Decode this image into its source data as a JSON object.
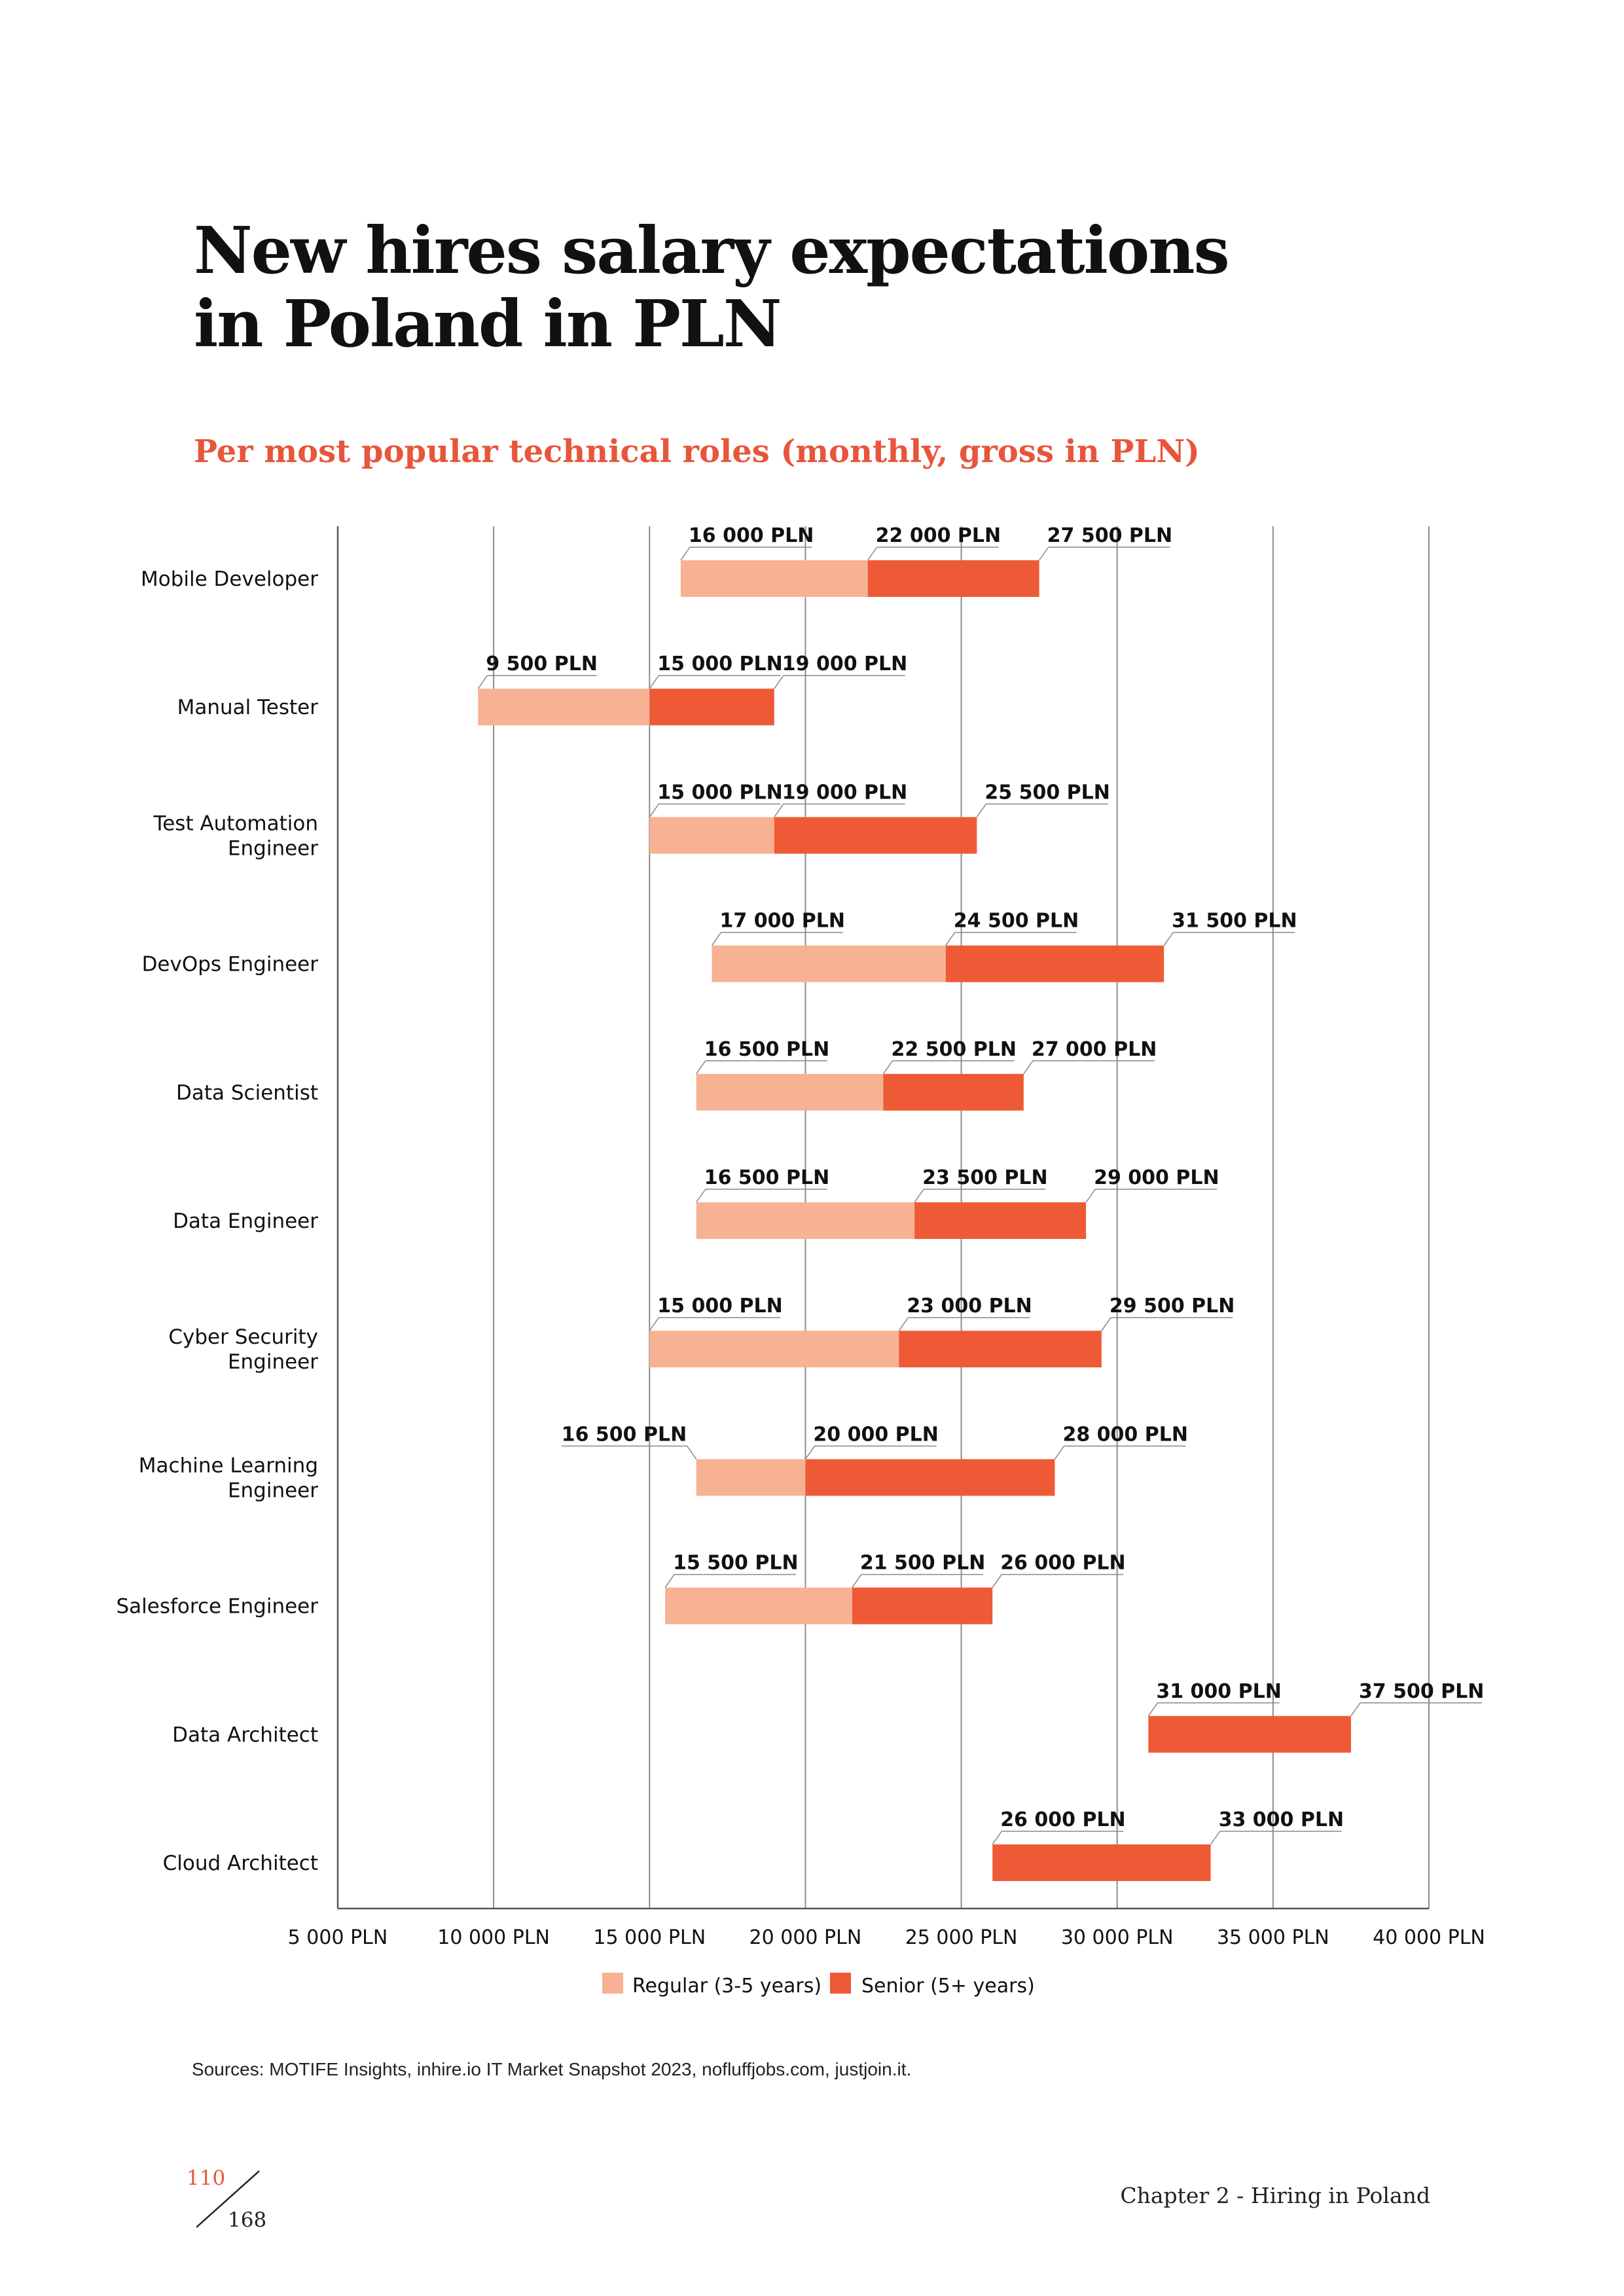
{
  "title_lines": [
    "New hires salary expectations",
    "in Poland in PLN"
  ],
  "subtitle": "Per most popular technical roles (monthly, gross in PLN)",
  "colors": {
    "regular": "#f7b294",
    "senior": "#ee5a36",
    "accent": "#e8553a"
  },
  "chart_data": {
    "type": "bar",
    "orientation": "horizontal-range",
    "xlim": [
      5000,
      40000
    ],
    "x_ticks": [
      5000,
      10000,
      15000,
      20000,
      25000,
      30000,
      35000,
      40000
    ],
    "x_tick_labels": [
      "5 000 PLN",
      "10 000 PLN",
      "15 000 PLN",
      "20 000 PLN",
      "25 000 PLN",
      "30 000 PLN",
      "35 000 PLN",
      "40 000 PLN"
    ],
    "grid": "vertical",
    "legend_position": "bottom-center",
    "legend": [
      "Regular (3-5 years)",
      "Senior (5+ years)"
    ],
    "roles": [
      {
        "name_lines": [
          "Mobile Developer"
        ],
        "regular_min": 16000,
        "senior_min": 22000,
        "senior_max": 27500,
        "labels": [
          "16 000 PLN",
          "22 000 PLN",
          "27 500 PLN"
        ]
      },
      {
        "name_lines": [
          "Manual Tester"
        ],
        "regular_min": 9500,
        "senior_min": 15000,
        "senior_max": 19000,
        "labels": [
          "9 500 PLN",
          "15 000 PLN",
          "19 000 PLN"
        ]
      },
      {
        "name_lines": [
          "Test Automation",
          "Engineer"
        ],
        "regular_min": 15000,
        "senior_min": 19000,
        "senior_max": 25500,
        "labels": [
          "15 000 PLN",
          "19 000 PLN",
          "25 500 PLN"
        ]
      },
      {
        "name_lines": [
          "DevOps Engineer"
        ],
        "regular_min": 17000,
        "senior_min": 24500,
        "senior_max": 31500,
        "labels": [
          "17 000 PLN",
          "24 500 PLN",
          "31 500 PLN"
        ]
      },
      {
        "name_lines": [
          "Data Scientist"
        ],
        "regular_min": 16500,
        "senior_min": 22500,
        "senior_max": 27000,
        "labels": [
          "16 500 PLN",
          "22 500 PLN",
          "27 000 PLN"
        ]
      },
      {
        "name_lines": [
          "Data Engineer"
        ],
        "regular_min": 16500,
        "senior_min": 23500,
        "senior_max": 29000,
        "labels": [
          "16 500 PLN",
          "23 500 PLN",
          "29 000 PLN"
        ]
      },
      {
        "name_lines": [
          "Cyber Security",
          "Engineer"
        ],
        "regular_min": 15000,
        "senior_min": 23000,
        "senior_max": 29500,
        "labels": [
          "15 000 PLN",
          "23 000 PLN",
          "29 500 PLN"
        ]
      },
      {
        "name_lines": [
          "Machine Learning",
          "Engineer"
        ],
        "regular_min": 16500,
        "senior_min": 20000,
        "senior_max": 28000,
        "labels": [
          "16 500 PLN",
          "20 000 PLN",
          "28 000 PLN"
        ]
      },
      {
        "name_lines": [
          "Salesforce Engineer"
        ],
        "regular_min": 15500,
        "senior_min": 21500,
        "senior_max": 26000,
        "labels": [
          "15 500 PLN",
          "21 500 PLN",
          "26 000 PLN"
        ]
      },
      {
        "name_lines": [
          "Data Architect"
        ],
        "regular_min": null,
        "senior_min": 31000,
        "senior_max": 37500,
        "labels": [
          "31 000 PLN",
          "37 500 PLN"
        ]
      },
      {
        "name_lines": [
          "Cloud Architect"
        ],
        "regular_min": null,
        "senior_min": 26000,
        "senior_max": 33000,
        "labels": [
          "26 000 PLN",
          "33 000 PLN"
        ]
      }
    ]
  },
  "source": "Sources: MOTIFE Insights, inhire.io IT Market Snapshot 2023, nofluffjobs.com, justjoin.it.",
  "page": {
    "current": "110",
    "total": "168"
  },
  "chapter": "Chapter 2 - Hiring in Poland"
}
